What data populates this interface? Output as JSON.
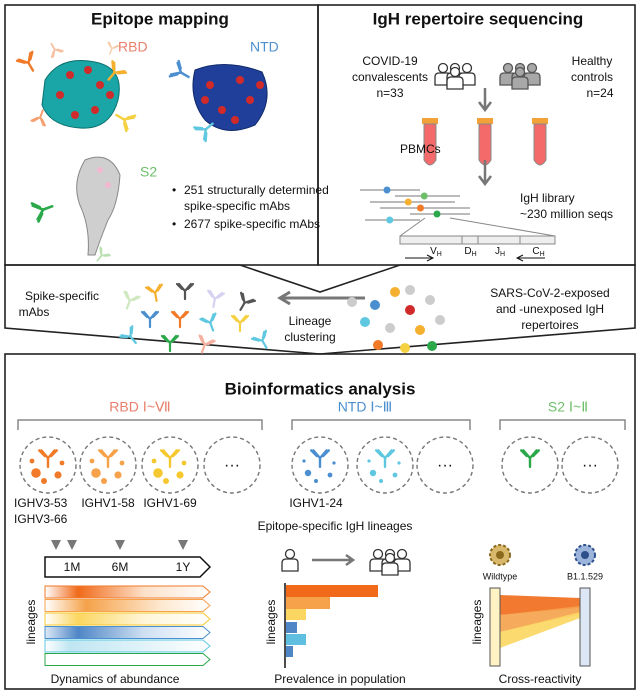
{
  "epitope_mapping": {
    "title": "Epitope mapping",
    "domains": [
      "RBD",
      "NTD",
      "S2"
    ],
    "bullets": [
      [
        "251 structurally determined",
        "spike-specific mAbs"
      ],
      [
        "2677 spike-specific mAbs"
      ]
    ]
  },
  "repertoire": {
    "title": "IgH repertoire sequencing",
    "groups": [
      {
        "name": [
          "COVID-19",
          "convalescents"
        ],
        "n": "n=33"
      },
      {
        "name": [
          "Healthy",
          "controls"
        ],
        "n": "n=24"
      }
    ],
    "sample": "PBMCs",
    "library": [
      "IgH library",
      "~230 million seqs"
    ],
    "segments": [
      {
        "letter": "V",
        "sub": "H"
      },
      {
        "letter": "D",
        "sub": "H"
      },
      {
        "letter": "J",
        "sub": "H"
      },
      {
        "letter": "C",
        "sub": "H"
      }
    ]
  },
  "clustering": {
    "left": [
      "Spike-specific",
      "mAbs"
    ],
    "arrow": [
      "Lineage",
      "clustering"
    ],
    "right": [
      "SARS-CoV-2-exposed",
      "and -unexposed IgH",
      "repertoires"
    ]
  },
  "analysis": {
    "title": "Bioinformatics analysis",
    "groups": [
      "RBD Ⅰ~Ⅶ",
      "NTD Ⅰ~Ⅲ",
      "S2 Ⅰ~Ⅱ"
    ],
    "genes": [
      [
        "IGHV3-53",
        "IGHV3-66"
      ],
      [
        "IGHV1-58"
      ],
      [
        "IGHV1-69"
      ],
      [
        "IGHV1-24"
      ]
    ],
    "ellipsis": "···",
    "lineages_caption": "Epitope-specific IgH lineages",
    "timepoints": [
      "1M",
      "6M",
      "1Y"
    ],
    "panels": [
      {
        "axis": "lineages",
        "caption": "Dynamics of abundance"
      },
      {
        "axis": "lineages",
        "caption": "Prevalence in population"
      },
      {
        "axis": "lineages",
        "caption": "Cross-reactivity"
      }
    ],
    "variants": [
      "Wildtype",
      "B1.1.529"
    ]
  }
}
